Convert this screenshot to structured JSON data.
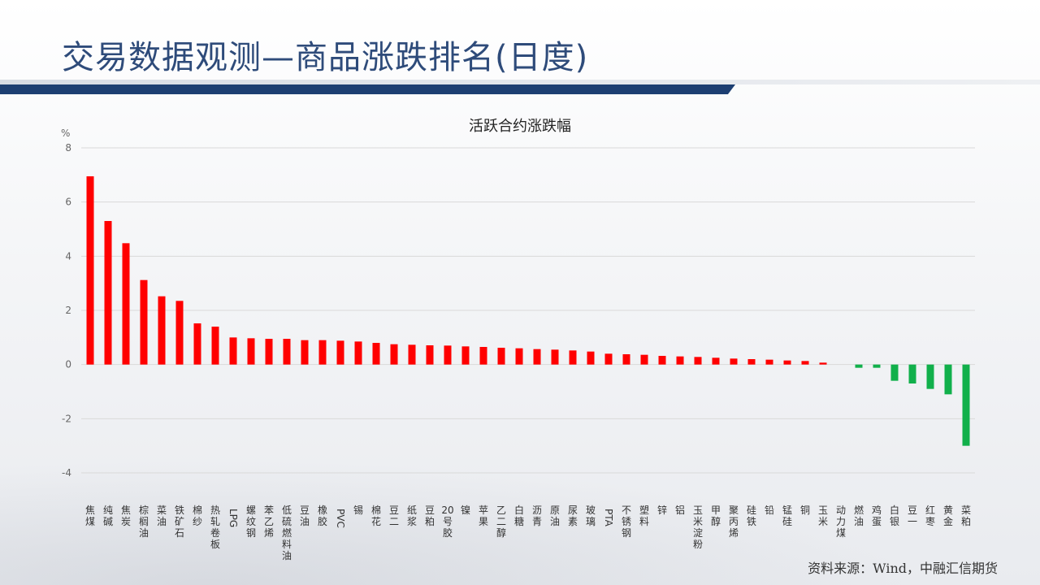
{
  "header": {
    "title": "交易数据观测—商品涨跌排名(日度)"
  },
  "footer": {
    "source": "资料来源：Wind，中融汇信期货"
  },
  "colors": {
    "up": "#ff0000",
    "down": "#11b04b",
    "title": "#2e4b7a",
    "rule": "#1d3f72"
  },
  "chart_data": {
    "type": "bar",
    "title": "活跃合约涨跌幅",
    "ylabel": "%",
    "ylim": [
      -4,
      8
    ],
    "yticks": [
      -4,
      -2,
      0,
      2,
      4,
      6,
      8
    ],
    "grid": true,
    "categories": [
      "焦煤",
      "纯碱",
      "焦炭",
      "棕榈油",
      "菜油",
      "铁矿石",
      "棉纱",
      "热轧卷板",
      "LPG",
      "螺纹钢",
      "苯乙烯",
      "低硫燃料油",
      "豆油",
      "橡胶",
      "PVC",
      "锡",
      "棉花",
      "豆二",
      "纸浆",
      "豆粕",
      "20号胶",
      "镍",
      "苹果",
      "乙二醇",
      "白糖",
      "沥青",
      "原油",
      "尿素",
      "玻璃",
      "PTA",
      "不锈钢",
      "塑料",
      "锌",
      "铝",
      "玉米淀粉",
      "甲醇",
      "聚丙烯",
      "硅铁",
      "铅",
      "锰硅",
      "铜",
      "玉米",
      "动力煤",
      "燃油",
      "鸡蛋",
      "白银",
      "豆一",
      "红枣",
      "黄金",
      "菜粕"
    ],
    "values": [
      6.95,
      5.3,
      4.48,
      3.12,
      2.52,
      2.35,
      1.52,
      1.4,
      1.0,
      0.97,
      0.95,
      0.95,
      0.9,
      0.9,
      0.88,
      0.85,
      0.8,
      0.75,
      0.73,
      0.71,
      0.7,
      0.67,
      0.65,
      0.62,
      0.6,
      0.57,
      0.55,
      0.52,
      0.48,
      0.4,
      0.38,
      0.36,
      0.32,
      0.3,
      0.28,
      0.25,
      0.22,
      0.2,
      0.18,
      0.15,
      0.13,
      0.07,
      0.0,
      -0.12,
      -0.12,
      -0.6,
      -0.7,
      -0.9,
      -1.1,
      -3.0
    ]
  }
}
